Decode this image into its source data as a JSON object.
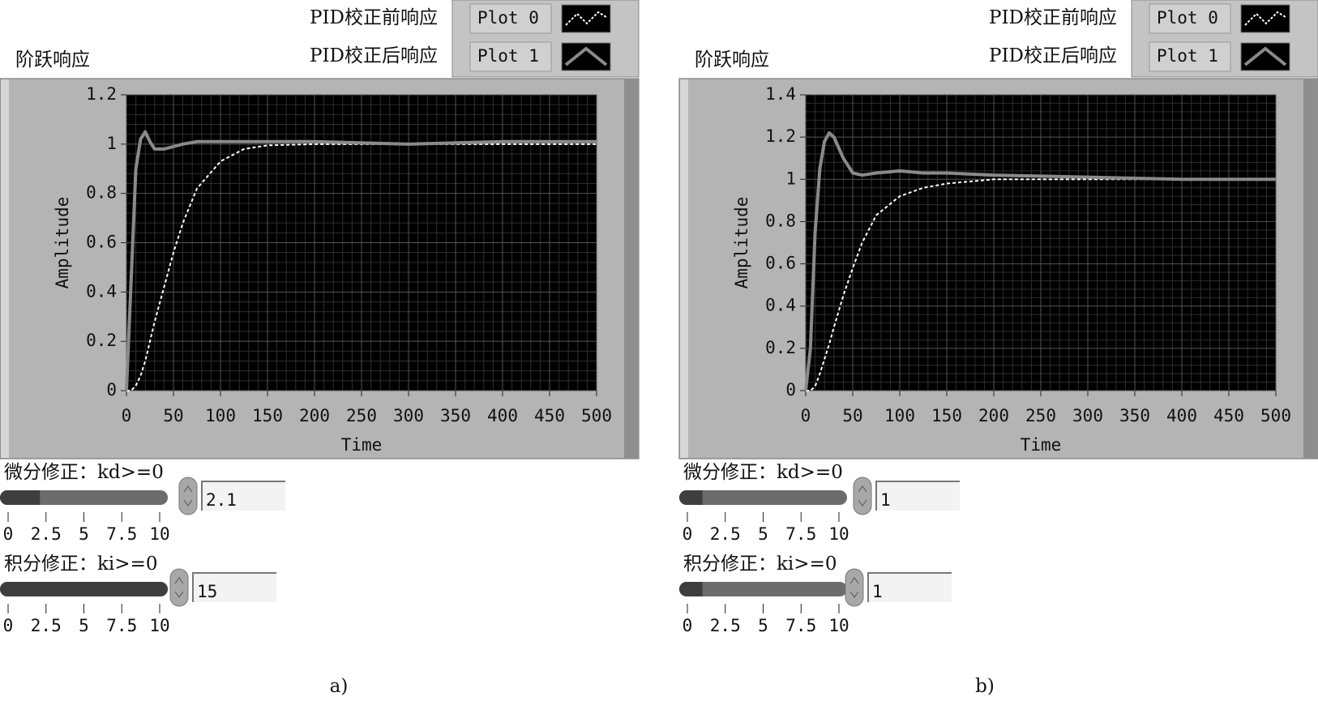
{
  "chart_data": [
    {
      "type": "line",
      "title": "阶跃响应",
      "x_label": "Time",
      "y_label": "Amplitude",
      "x": [
        0,
        5,
        10,
        15,
        20,
        25,
        30,
        40,
        50,
        60,
        75,
        100,
        125,
        150,
        200,
        300,
        400,
        500
      ],
      "series": [
        {
          "name": "PID校正前响应",
          "color": "#ffffff",
          "dashed": true,
          "values": [
            0,
            0,
            0.02,
            0.06,
            0.12,
            0.2,
            0.28,
            0.42,
            0.56,
            0.68,
            0.82,
            0.93,
            0.98,
            0.995,
            1,
            1,
            1,
            1
          ]
        },
        {
          "name": "PID校正后响应",
          "color": "#8a8a8a",
          "dashed": false,
          "values": [
            0,
            0.45,
            0.9,
            1.02,
            1.05,
            1.01,
            0.98,
            0.98,
            0.99,
            1,
            1.01,
            1.01,
            1.01,
            1.01,
            1.01,
            1,
            1.01,
            1.01
          ]
        }
      ],
      "legend_plot_labels": [
        "Plot 0",
        "Plot 1"
      ],
      "xlim": [
        0,
        500
      ],
      "ylim": [
        0,
        1.2
      ],
      "xticks": [
        0,
        50,
        100,
        150,
        200,
        250,
        300,
        350,
        400,
        450,
        500
      ],
      "yticks": [
        0,
        0.2,
        0.4,
        0.6,
        0.8,
        1,
        1.2
      ],
      "grid": true
    },
    {
      "type": "line",
      "title": "阶跃响应",
      "x_label": "Time",
      "y_label": "Amplitude",
      "x": [
        0,
        5,
        10,
        15,
        20,
        25,
        30,
        40,
        50,
        60,
        75,
        100,
        125,
        150,
        200,
        300,
        400,
        500
      ],
      "series": [
        {
          "name": "PID校正前响应",
          "color": "#ffffff",
          "dashed": true,
          "values": [
            0,
            0,
            0.02,
            0.08,
            0.15,
            0.22,
            0.3,
            0.45,
            0.58,
            0.7,
            0.83,
            0.92,
            0.96,
            0.98,
            1,
            1,
            1,
            1
          ]
        },
        {
          "name": "PID校正后响应",
          "color": "#8a8a8a",
          "dashed": false,
          "values": [
            0,
            0.2,
            0.75,
            1.05,
            1.18,
            1.22,
            1.2,
            1.1,
            1.03,
            1.02,
            1.03,
            1.04,
            1.03,
            1.03,
            1.02,
            1.01,
            1,
            1
          ]
        }
      ],
      "legend_plot_labels": [
        "Plot 0",
        "Plot 1"
      ],
      "xlim": [
        0,
        500
      ],
      "ylim": [
        0,
        1.4
      ],
      "xticks": [
        0,
        50,
        100,
        150,
        200,
        250,
        300,
        350,
        400,
        450,
        500
      ],
      "yticks": [
        0,
        0.2,
        0.4,
        0.6,
        0.8,
        1,
        1.2,
        1.4
      ],
      "grid": true
    }
  ],
  "panels": [
    {
      "caption": "a)",
      "controls": [
        {
          "label": "微分修正：kd>=0",
          "value": 2.1,
          "range": [
            0,
            10
          ],
          "ticks": [
            0,
            2.5,
            5,
            7.5,
            10
          ]
        },
        {
          "label": "积分修正：ki>=0",
          "value": 15,
          "range": [
            0,
            10
          ],
          "ticks": [
            0,
            2.5,
            5,
            7.5,
            10
          ]
        }
      ]
    },
    {
      "caption": "b)",
      "controls": [
        {
          "label": "微分修正：kd>=0",
          "value": 1,
          "range": [
            0,
            10
          ],
          "ticks": [
            0,
            2.5,
            5,
            7.5,
            10
          ]
        },
        {
          "label": "积分修正：ki>=0",
          "value": 1,
          "range": [
            0,
            10
          ],
          "ticks": [
            0,
            2.5,
            5,
            7.5,
            10
          ]
        }
      ]
    }
  ]
}
